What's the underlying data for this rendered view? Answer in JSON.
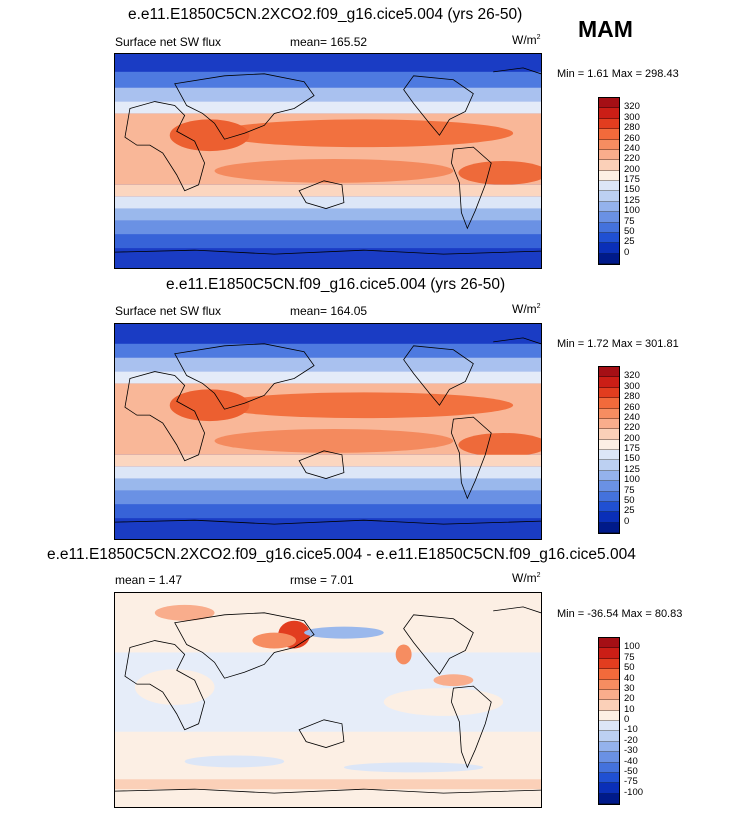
{
  "season": "MAM",
  "panels": [
    {
      "title": "e.e11.E1850C5CN.2XCO2.f09_g16.cice5.004 (yrs 26-50)",
      "left_label": "Surface net SW flux",
      "stat1": "mean= 165.52",
      "stat2": "",
      "unit_base": "W/m",
      "unit_sup": "2",
      "minmax": "Min =   1.61 Max = 298.43",
      "colorbar": {
        "labels": [
          "320",
          "300",
          "280",
          "260",
          "240",
          "220",
          "200",
          "175",
          "150",
          "125",
          "100",
          "75",
          "50",
          "25",
          "0"
        ],
        "colors": [
          "#a50f15",
          "#cb1e16",
          "#e23d1f",
          "#f26a3b",
          "#f68d61",
          "#f9ad8c",
          "#fbd0b8",
          "#fcefe4",
          "#dce6f7",
          "#bcd0f2",
          "#94b2ec",
          "#6a91e4",
          "#4472dc",
          "#2050d2",
          "#0a2fb8",
          "#001a8a"
        ]
      }
    },
    {
      "title": "e.e11.E1850C5CN.f09_g16.cice5.004 (yrs 26-50)",
      "left_label": "Surface net SW flux",
      "stat1": "mean= 164.05",
      "stat2": "",
      "unit_base": "W/m",
      "unit_sup": "2",
      "minmax": "Min =   1.72 Max = 301.81",
      "colorbar": {
        "labels": [
          "320",
          "300",
          "280",
          "260",
          "240",
          "220",
          "200",
          "175",
          "150",
          "125",
          "100",
          "75",
          "50",
          "25",
          "0"
        ],
        "colors": [
          "#a50f15",
          "#cb1e16",
          "#e23d1f",
          "#f26a3b",
          "#f68d61",
          "#f9ad8c",
          "#fbd0b8",
          "#fcefe4",
          "#dce6f7",
          "#bcd0f2",
          "#94b2ec",
          "#6a91e4",
          "#4472dc",
          "#2050d2",
          "#0a2fb8",
          "#001a8a"
        ]
      }
    },
    {
      "title": "e.e11.E1850C5CN.2XCO2.f09_g16.cice5.004 - e.e11.E1850C5CN.f09_g16.cice5.004",
      "left_label": "mean =   1.47",
      "stat1": "rmse =   7.01",
      "stat2": "",
      "unit_base": "W/m",
      "unit_sup": "2",
      "minmax": "Min = -36.54 Max =  80.83",
      "colorbar": {
        "labels": [
          "100",
          "75",
          "50",
          "40",
          "30",
          "20",
          "10",
          "0",
          "-10",
          "-20",
          "-30",
          "-40",
          "-50",
          "-75",
          "-100"
        ],
        "colors": [
          "#a50f15",
          "#cb1e16",
          "#e23d1f",
          "#f26a3b",
          "#f68d61",
          "#f9ad8c",
          "#fbd0b8",
          "#fcefe4",
          "#dce6f7",
          "#bcd0f2",
          "#94b2ec",
          "#6a91e4",
          "#4472dc",
          "#2050d2",
          "#0a2fb8",
          "#001a8a"
        ]
      }
    }
  ]
}
